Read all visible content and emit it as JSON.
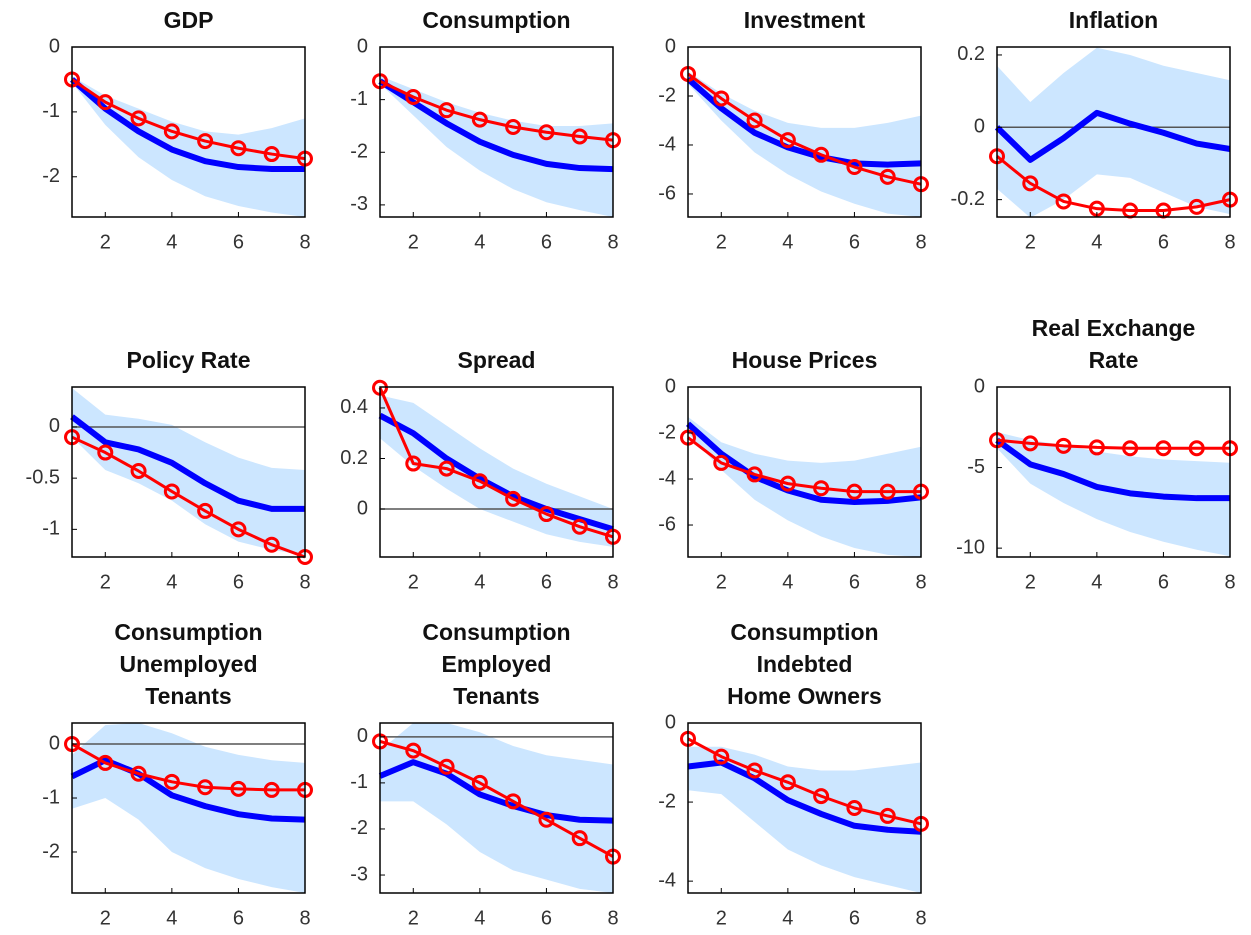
{
  "chart_data": [
    {
      "type": "line",
      "title": [
        "GDP"
      ],
      "x": [
        1,
        2,
        3,
        4,
        5,
        6,
        7,
        8
      ],
      "xlim": [
        1,
        8
      ],
      "xticks": [
        2,
        4,
        6,
        8
      ],
      "ylim": [
        -2.62,
        0
      ],
      "yticks": [
        -2,
        -1,
        0
      ],
      "zero_line": false,
      "band": {
        "color": "#cce6ff",
        "lower": [
          -0.55,
          -1.2,
          -1.7,
          -2.05,
          -2.3,
          -2.45,
          -2.55,
          -2.62
        ],
        "upper": [
          -0.45,
          -0.75,
          -0.95,
          -1.15,
          -1.3,
          -1.35,
          -1.25,
          -1.1
        ]
      },
      "series": [
        {
          "color": "#0000ff",
          "values": [
            -0.5,
            -0.95,
            -1.3,
            -1.58,
            -1.76,
            -1.85,
            -1.88,
            -1.88
          ]
        },
        {
          "color": "#ff0000",
          "marker": "circle",
          "values": [
            -0.5,
            -0.85,
            -1.1,
            -1.3,
            -1.45,
            -1.56,
            -1.65,
            -1.72
          ]
        }
      ]
    },
    {
      "type": "line",
      "title": [
        "Consumption"
      ],
      "x": [
        1,
        2,
        3,
        4,
        5,
        6,
        7,
        8
      ],
      "xlim": [
        1,
        8
      ],
      "xticks": [
        2,
        4,
        6,
        8
      ],
      "ylim": [
        -3.23,
        0
      ],
      "yticks": [
        -3,
        -2,
        -1,
        0
      ],
      "zero_line": false,
      "band": {
        "color": "#cce6ff",
        "lower": [
          -0.7,
          -1.3,
          -1.9,
          -2.35,
          -2.7,
          -2.95,
          -3.1,
          -3.23
        ],
        "upper": [
          -0.55,
          -0.8,
          -1.05,
          -1.25,
          -1.4,
          -1.5,
          -1.5,
          -1.45
        ]
      },
      "series": [
        {
          "color": "#0000ff",
          "values": [
            -0.65,
            -1.05,
            -1.45,
            -1.8,
            -2.05,
            -2.22,
            -2.3,
            -2.32
          ]
        },
        {
          "color": "#ff0000",
          "marker": "circle",
          "values": [
            -0.65,
            -0.95,
            -1.2,
            -1.38,
            -1.52,
            -1.62,
            -1.7,
            -1.77
          ]
        }
      ]
    },
    {
      "type": "line",
      "title": [
        "Investment"
      ],
      "x": [
        1,
        2,
        3,
        4,
        5,
        6,
        7,
        8
      ],
      "xlim": [
        1,
        8
      ],
      "xticks": [
        2,
        4,
        6,
        8
      ],
      "ylim": [
        -6.94,
        0
      ],
      "yticks": [
        -6,
        -4,
        -2,
        0
      ],
      "zero_line": false,
      "band": {
        "color": "#cce6ff",
        "lower": [
          -1.5,
          -3.0,
          -4.3,
          -5.2,
          -5.9,
          -6.4,
          -6.8,
          -6.94
        ],
        "upper": [
          -1.0,
          -1.9,
          -2.6,
          -3.1,
          -3.3,
          -3.3,
          -3.1,
          -2.8
        ]
      },
      "series": [
        {
          "color": "#0000ff",
          "values": [
            -1.3,
            -2.5,
            -3.5,
            -4.1,
            -4.5,
            -4.75,
            -4.8,
            -4.75
          ]
        },
        {
          "color": "#ff0000",
          "marker": "circle",
          "values": [
            -1.1,
            -2.1,
            -3.0,
            -3.8,
            -4.4,
            -4.9,
            -5.3,
            -5.6
          ]
        }
      ]
    },
    {
      "type": "line",
      "title": [
        "Inflation"
      ],
      "x": [
        1,
        2,
        3,
        4,
        5,
        6,
        7,
        8
      ],
      "xlim": [
        1,
        8
      ],
      "xticks": [
        2,
        4,
        6,
        8
      ],
      "ylim": [
        -0.248,
        0.222
      ],
      "yticks": [
        -0.2,
        0,
        0.2
      ],
      "zero_line": true,
      "band": {
        "color": "#cce6ff",
        "lower": [
          -0.17,
          -0.25,
          -0.2,
          -0.13,
          -0.14,
          -0.18,
          -0.22,
          -0.24
        ],
        "upper": [
          0.17,
          0.07,
          0.15,
          0.22,
          0.2,
          0.17,
          0.15,
          0.13
        ]
      },
      "series": [
        {
          "color": "#0000ff",
          "values": [
            0,
            -0.09,
            -0.03,
            0.04,
            0.01,
            -0.015,
            -0.045,
            -0.06
          ]
        },
        {
          "color": "#ff0000",
          "marker": "circle",
          "values": [
            -0.08,
            -0.155,
            -0.205,
            -0.225,
            -0.23,
            -0.23,
            -0.22,
            -0.2
          ]
        }
      ]
    },
    {
      "type": "line",
      "title": [
        "Policy Rate"
      ],
      "x": [
        1,
        2,
        3,
        4,
        5,
        6,
        7,
        8
      ],
      "xlim": [
        1,
        8
      ],
      "xticks": [
        2,
        4,
        6,
        8
      ],
      "ylim": [
        -1.27,
        0.39
      ],
      "yticks": [
        -1,
        -0.5,
        0
      ],
      "zero_line": true,
      "band": {
        "color": "#cce6ff",
        "lower": [
          -0.1,
          -0.42,
          -0.55,
          -0.72,
          -0.95,
          -1.12,
          -1.2,
          -1.25
        ],
        "upper": [
          0.38,
          0.12,
          0.08,
          0.02,
          -0.15,
          -0.3,
          -0.4,
          -0.42
        ]
      },
      "series": [
        {
          "color": "#0000ff",
          "values": [
            0.1,
            -0.15,
            -0.22,
            -0.35,
            -0.55,
            -0.72,
            -0.8,
            -0.8
          ]
        },
        {
          "color": "#ff0000",
          "marker": "circle",
          "values": [
            -0.1,
            -0.25,
            -0.43,
            -0.63,
            -0.82,
            -1.0,
            -1.15,
            -1.27
          ]
        }
      ]
    },
    {
      "type": "line",
      "title": [
        "Spread"
      ],
      "x": [
        1,
        2,
        3,
        4,
        5,
        6,
        7,
        8
      ],
      "xlim": [
        1,
        8
      ],
      "xticks": [
        2,
        4,
        6,
        8
      ],
      "ylim": [
        -0.19,
        0.483
      ],
      "yticks": [
        0,
        0.2,
        0.4
      ],
      "zero_line": true,
      "band": {
        "color": "#cce6ff",
        "lower": [
          0.28,
          0.17,
          0.08,
          0.0,
          -0.05,
          -0.1,
          -0.13,
          -0.15
        ],
        "upper": [
          0.45,
          0.42,
          0.33,
          0.24,
          0.16,
          0.1,
          0.05,
          0.0
        ]
      },
      "series": [
        {
          "color": "#0000ff",
          "values": [
            0.37,
            0.3,
            0.2,
            0.12,
            0.05,
            0.0,
            -0.04,
            -0.08
          ]
        },
        {
          "color": "#ff0000",
          "marker": "circle",
          "values": [
            0.48,
            0.18,
            0.16,
            0.11,
            0.04,
            -0.02,
            -0.07,
            -0.11
          ]
        }
      ]
    },
    {
      "type": "line",
      "title": [
        "House Prices"
      ],
      "x": [
        1,
        2,
        3,
        4,
        5,
        6,
        7,
        8
      ],
      "xlim": [
        1,
        8
      ],
      "xticks": [
        2,
        4,
        6,
        8
      ],
      "ylim": [
        -7.39,
        0
      ],
      "yticks": [
        -6,
        -4,
        -2,
        0
      ],
      "zero_line": false,
      "band": {
        "color": "#cce6ff",
        "lower": [
          -2.0,
          -3.6,
          -4.9,
          -5.8,
          -6.5,
          -7.0,
          -7.3,
          -7.39
        ],
        "upper": [
          -1.3,
          -2.4,
          -2.9,
          -3.2,
          -3.3,
          -3.2,
          -2.9,
          -2.6
        ]
      },
      "series": [
        {
          "color": "#0000ff",
          "values": [
            -1.6,
            -2.9,
            -3.9,
            -4.5,
            -4.9,
            -5.0,
            -4.95,
            -4.8
          ]
        },
        {
          "color": "#ff0000",
          "marker": "circle",
          "values": [
            -2.2,
            -3.3,
            -3.8,
            -4.2,
            -4.4,
            -4.55,
            -4.55,
            -4.55
          ]
        }
      ]
    },
    {
      "type": "line",
      "title": [
        "Real Exchange",
        "Rate"
      ],
      "x": [
        1,
        2,
        3,
        4,
        5,
        6,
        7,
        8
      ],
      "xlim": [
        1,
        8
      ],
      "xticks": [
        2,
        4,
        6,
        8
      ],
      "ylim": [
        -10.55,
        0
      ],
      "yticks": [
        -10,
        -5,
        0
      ],
      "zero_line": false,
      "band": {
        "color": "#cce6ff",
        "lower": [
          -3.8,
          -6.0,
          -7.2,
          -8.2,
          -9.0,
          -9.6,
          -10.1,
          -10.5
        ],
        "upper": [
          -2.8,
          -3.3,
          -3.6,
          -4.0,
          -4.3,
          -4.5,
          -4.6,
          -4.7
        ]
      },
      "series": [
        {
          "color": "#0000ff",
          "values": [
            -3.3,
            -4.8,
            -5.4,
            -6.2,
            -6.6,
            -6.8,
            -6.9,
            -6.9
          ]
        },
        {
          "color": "#ff0000",
          "marker": "circle",
          "values": [
            -3.3,
            -3.5,
            -3.65,
            -3.75,
            -3.8,
            -3.8,
            -3.8,
            -3.8
          ]
        }
      ]
    },
    {
      "type": "line",
      "title": [
        "Consumption",
        "Unemployed",
        "Tenants"
      ],
      "x": [
        1,
        2,
        3,
        4,
        5,
        6,
        7,
        8
      ],
      "xlim": [
        1,
        8
      ],
      "xticks": [
        2,
        4,
        6,
        8
      ],
      "ylim": [
        -2.76,
        0.39
      ],
      "yticks": [
        -2,
        -1,
        0
      ],
      "zero_line": true,
      "band": {
        "color": "#cce6ff",
        "lower": [
          -1.2,
          -1.0,
          -1.4,
          -2.0,
          -2.3,
          -2.5,
          -2.65,
          -2.76
        ],
        "upper": [
          -0.2,
          0.35,
          0.39,
          0.2,
          -0.05,
          -0.2,
          -0.3,
          -0.35
        ]
      },
      "series": [
        {
          "color": "#0000ff",
          "values": [
            -0.6,
            -0.3,
            -0.55,
            -0.95,
            -1.15,
            -1.3,
            -1.38,
            -1.4
          ]
        },
        {
          "color": "#ff0000",
          "marker": "circle",
          "values": [
            0,
            -0.35,
            -0.55,
            -0.7,
            -0.8,
            -0.83,
            -0.85,
            -0.85
          ]
        }
      ]
    },
    {
      "type": "line",
      "title": [
        "Consumption",
        "Employed",
        "Tenants"
      ],
      "x": [
        1,
        2,
        3,
        4,
        5,
        6,
        7,
        8
      ],
      "xlim": [
        1,
        8
      ],
      "xticks": [
        2,
        4,
        6,
        8
      ],
      "ylim": [
        -3.39,
        0.3
      ],
      "yticks": [
        -3,
        -2,
        -1,
        0
      ],
      "zero_line": true,
      "band": {
        "color": "#cce6ff",
        "lower": [
          -1.4,
          -1.4,
          -1.9,
          -2.5,
          -2.9,
          -3.1,
          -3.3,
          -3.39
        ],
        "upper": [
          -0.3,
          0.3,
          0.3,
          0.1,
          -0.2,
          -0.4,
          -0.5,
          -0.6
        ]
      },
      "series": [
        {
          "color": "#0000ff",
          "values": [
            -0.85,
            -0.55,
            -0.8,
            -1.25,
            -1.5,
            -1.7,
            -1.8,
            -1.82
          ]
        },
        {
          "color": "#ff0000",
          "marker": "circle",
          "values": [
            -0.1,
            -0.3,
            -0.65,
            -1.0,
            -1.4,
            -1.8,
            -2.2,
            -2.6
          ]
        }
      ]
    },
    {
      "type": "line",
      "title": [
        "Consumption",
        "Indebted",
        "Home Owners"
      ],
      "x": [
        1,
        2,
        3,
        4,
        5,
        6,
        7,
        8
      ],
      "xlim": [
        1,
        8
      ],
      "xticks": [
        2,
        4,
        6,
        8
      ],
      "ylim": [
        -4.3,
        0
      ],
      "yticks": [
        -4,
        -2,
        0
      ],
      "zero_line": false,
      "band": {
        "color": "#cce6ff",
        "lower": [
          -1.7,
          -1.8,
          -2.5,
          -3.2,
          -3.6,
          -3.9,
          -4.1,
          -4.3
        ],
        "upper": [
          -0.6,
          -0.6,
          -0.8,
          -1.1,
          -1.2,
          -1.2,
          -1.1,
          -1.0
        ]
      },
      "series": [
        {
          "color": "#0000ff",
          "values": [
            -1.1,
            -1.0,
            -1.4,
            -1.95,
            -2.3,
            -2.6,
            -2.7,
            -2.75
          ]
        },
        {
          "color": "#ff0000",
          "marker": "circle",
          "values": [
            -0.4,
            -0.85,
            -1.2,
            -1.5,
            -1.85,
            -2.15,
            -2.35,
            -2.55
          ]
        }
      ]
    }
  ]
}
